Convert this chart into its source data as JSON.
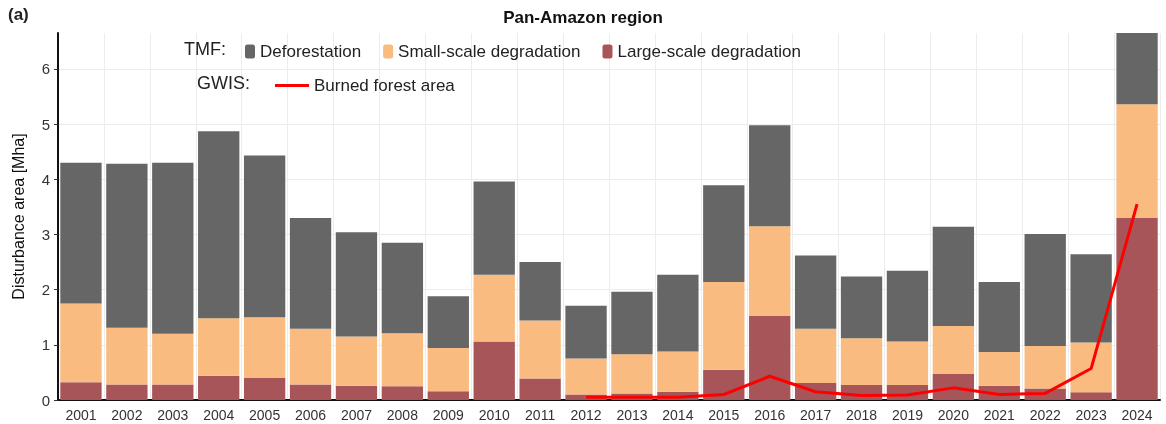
{
  "chart_data": {
    "type": "bar",
    "title": "Pan-Amazon region",
    "ylabel": "Disturbance area [Mha]",
    "annotations": [
      "(a)",
      "TMF:",
      "GWIS:"
    ],
    "categories": [
      "2001",
      "2002",
      "2003",
      "2004",
      "2005",
      "2006",
      "2007",
      "2008",
      "2009",
      "2010",
      "2011",
      "2012",
      "2013",
      "2014",
      "2015",
      "2016",
      "2017",
      "2018",
      "2019",
      "2020",
      "2021",
      "2022",
      "2023",
      "2024"
    ],
    "stacked": true,
    "series": [
      {
        "name": "Large-scale degradation",
        "color": "#a8555a",
        "values": [
          0.32,
          0.28,
          0.28,
          0.44,
          0.4,
          0.28,
          0.26,
          0.25,
          0.16,
          1.06,
          0.39,
          0.1,
          0.12,
          0.15,
          0.55,
          1.52,
          0.31,
          0.27,
          0.27,
          0.47,
          0.26,
          0.21,
          0.14,
          3.3
        ]
      },
      {
        "name": "Small-scale degradation",
        "color": "#f9bb7f",
        "values": [
          1.43,
          1.03,
          0.92,
          1.04,
          1.1,
          1.01,
          0.89,
          0.96,
          0.78,
          1.21,
          1.05,
          0.65,
          0.71,
          0.73,
          1.59,
          1.63,
          0.98,
          0.85,
          0.79,
          0.87,
          0.61,
          0.77,
          0.9,
          2.06
        ]
      },
      {
        "name": "Deforestation",
        "color": "#666666",
        "values": [
          2.55,
          2.97,
          3.1,
          3.39,
          2.93,
          2.01,
          1.89,
          1.64,
          0.94,
          1.69,
          1.06,
          0.96,
          1.13,
          1.39,
          1.75,
          1.83,
          1.33,
          1.12,
          1.28,
          1.8,
          1.27,
          2.03,
          1.6,
          1.29
        ]
      },
      {
        "name": "Burned forest area",
        "type": "line",
        "color": "#ff0000",
        "values": [
          null,
          null,
          null,
          null,
          null,
          null,
          null,
          null,
          null,
          null,
          null,
          0.05,
          0.05,
          0.05,
          0.1,
          0.43,
          0.15,
          0.08,
          0.09,
          0.22,
          0.1,
          0.12,
          0.57,
          3.55
        ]
      }
    ],
    "ylim": [
      0,
      6.65
    ],
    "yticks": [
      0,
      1,
      2,
      3,
      4,
      5,
      6
    ],
    "grid": true,
    "legend": "top",
    "marker": "none"
  }
}
